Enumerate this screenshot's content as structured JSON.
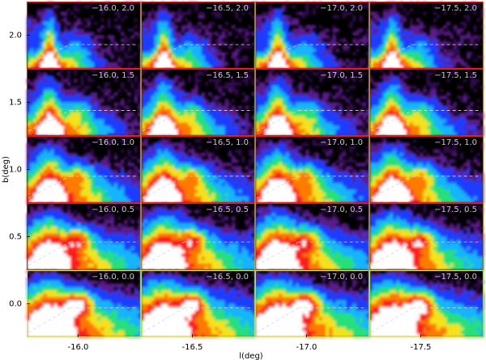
{
  "chart_data": {
    "type": "heatmap",
    "layout": "grid of panels (4 columns x 5 rows)",
    "xlabel": "l(deg)",
    "ylabel": "b(deg)",
    "x_ticks": [
      "-16.0",
      "-16.5",
      "-17.0",
      "-17.5"
    ],
    "y_ticks": [
      "2.0",
      "1.5",
      "1.0",
      "0.5",
      "0.0"
    ],
    "colormap": [
      "#5a1a8c",
      "#1f3cff",
      "#18b4ff",
      "#27e07a",
      "#f4e21c",
      "#ff7a00",
      "#ff1a1a",
      "#ffffff"
    ],
    "background": "#000000",
    "reference_lines": "dashed white horizontal and diagonal guide lines in each panel",
    "panels": [
      {
        "l": -16.0,
        "b": 2.0,
        "label": "−16.0, 2.0",
        "frame": "#e02020"
      },
      {
        "l": -16.5,
        "b": 2.0,
        "label": "−16.5, 2.0",
        "frame": "#e02020"
      },
      {
        "l": -17.0,
        "b": 2.0,
        "label": "−17.0, 2.0",
        "frame": "#e02020"
      },
      {
        "l": -17.5,
        "b": 2.0,
        "label": "−17.5, 2.0",
        "frame": "#e02020"
      },
      {
        "l": -16.0,
        "b": 1.5,
        "label": "−16.0, 1.5",
        "frame": "#e02020"
      },
      {
        "l": -16.5,
        "b": 1.5,
        "label": "−16.5, 1.5",
        "frame": "#e02020"
      },
      {
        "l": -17.0,
        "b": 1.5,
        "label": "−17.0, 1.5",
        "frame": "#e02020"
      },
      {
        "l": -17.5,
        "b": 1.5,
        "label": "−17.5, 1.5",
        "frame": "#e02020"
      },
      {
        "l": -16.0,
        "b": 1.0,
        "label": "−16.0, 1.0",
        "frame": "#e02020"
      },
      {
        "l": -16.5,
        "b": 1.0,
        "label": "−16.5, 1.0",
        "frame": "#e02020"
      },
      {
        "l": -17.0,
        "b": 1.0,
        "label": "−17.0, 1.0",
        "frame": "#e02020"
      },
      {
        "l": -17.5,
        "b": 1.0,
        "label": "−17.5, 1.0",
        "frame": "#e02020"
      },
      {
        "l": -16.0,
        "b": 0.5,
        "label": "−16.0, 0.5",
        "frame": "#e02020"
      },
      {
        "l": -16.5,
        "b": 0.5,
        "label": "−16.5, 0.5",
        "frame": "#e02020"
      },
      {
        "l": -17.0,
        "b": 0.5,
        "label": "−17.0, 0.5",
        "frame": "#e02020"
      },
      {
        "l": -17.5,
        "b": 0.5,
        "label": "−17.5, 0.5",
        "frame": "#e02020"
      },
      {
        "l": -16.0,
        "b": 0.0,
        "label": "−16.0, 0.0",
        "frame": "#e8e060"
      },
      {
        "l": -16.5,
        "b": 0.0,
        "label": "−16.5, 0.0",
        "frame": "#e8e060"
      },
      {
        "l": -17.0,
        "b": 0.0,
        "label": "−17.0, 0.0",
        "frame": "#e8e060"
      },
      {
        "l": -17.5,
        "b": 0.0,
        "label": "−17.5, 0.0",
        "frame": "#e8e060"
      }
    ],
    "grid": false,
    "legend": "none"
  }
}
